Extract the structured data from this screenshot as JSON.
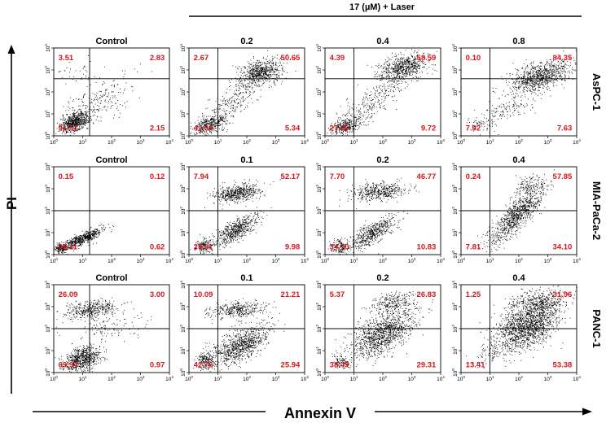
{
  "figure": {
    "treatment_label": "17 (µM) + Laser",
    "y_axis_label": "PI",
    "x_axis_label": "Annexin V",
    "tick_base": "10",
    "tick_exponents": [
      "0",
      "1",
      "2",
      "3",
      "4"
    ],
    "colors": {
      "quadrant_text": "#d6181e",
      "dots": "#000000",
      "axis": "#000000"
    }
  },
  "chart_data": [
    {
      "type": "scatter",
      "row": "AsPC-1",
      "xlabel": "Annexin V",
      "ylabel": "PI",
      "xlim": [
        "10^0",
        "10^4"
      ],
      "ylim": [
        "10^0",
        "10^4"
      ],
      "scale": "log",
      "panels": [
        {
          "title": "Control",
          "quadrants": {
            "upper_left": "3.51",
            "upper_right": "2.83",
            "lower_left": "91.51",
            "lower_right": "2.15"
          }
        },
        {
          "title": "0.2",
          "quadrants": {
            "upper_left": "2.67",
            "upper_right": "50.65",
            "lower_left": "41.34",
            "lower_right": "5.34"
          }
        },
        {
          "title": "0.4",
          "quadrants": {
            "upper_left": "4.39",
            "upper_right": "58.59",
            "lower_left": "27.30",
            "lower_right": "9.72"
          }
        },
        {
          "title": "0.8",
          "quadrants": {
            "upper_left": "0.10",
            "upper_right": "84.35",
            "lower_left": "7.92",
            "lower_right": "7.63"
          }
        }
      ]
    },
    {
      "type": "scatter",
      "row": "MIA-PaCa-2",
      "xlabel": "Annexin V",
      "ylabel": "PI",
      "xlim": [
        "10^0",
        "10^4"
      ],
      "ylim": [
        "10^0",
        "10^4"
      ],
      "scale": "log",
      "panels": [
        {
          "title": "Control",
          "quadrants": {
            "upper_left": "0.15",
            "upper_right": "0.12",
            "lower_left": "99.11",
            "lower_right": "0.62"
          }
        },
        {
          "title": "0.1",
          "quadrants": {
            "upper_left": "7.94",
            "upper_right": "52.17",
            "lower_left": "29.91",
            "lower_right": "9.98"
          }
        },
        {
          "title": "0.2",
          "quadrants": {
            "upper_left": "7.70",
            "upper_right": "46.77",
            "lower_left": "34.70",
            "lower_right": "10.83"
          }
        },
        {
          "title": "0.4",
          "quadrants": {
            "upper_left": "0.24",
            "upper_right": "57.85",
            "lower_left": "7.81",
            "lower_right": "34.10"
          }
        }
      ]
    },
    {
      "type": "scatter",
      "row": "PANC-1",
      "xlabel": "Annexin V",
      "ylabel": "PI",
      "xlim": [
        "10^0",
        "10^4"
      ],
      "ylim": [
        "10^0",
        "10^4"
      ],
      "scale": "log",
      "panels": [
        {
          "title": "Control",
          "quadrants": {
            "upper_left": "26.09",
            "upper_right": "3.00",
            "lower_left": "69.94",
            "lower_right": "0.97"
          }
        },
        {
          "title": "0.1",
          "quadrants": {
            "upper_left": "10.09",
            "upper_right": "21.21",
            "lower_left": "42.76",
            "lower_right": "25.94"
          }
        },
        {
          "title": "0.2",
          "quadrants": {
            "upper_left": "5.37",
            "upper_right": "26.83",
            "lower_left": "38.49",
            "lower_right": "29.31"
          }
        },
        {
          "title": "0.4",
          "quadrants": {
            "upper_left": "1.25",
            "upper_right": "31.96",
            "lower_left": "13.41",
            "lower_right": "53.38"
          }
        }
      ]
    }
  ]
}
